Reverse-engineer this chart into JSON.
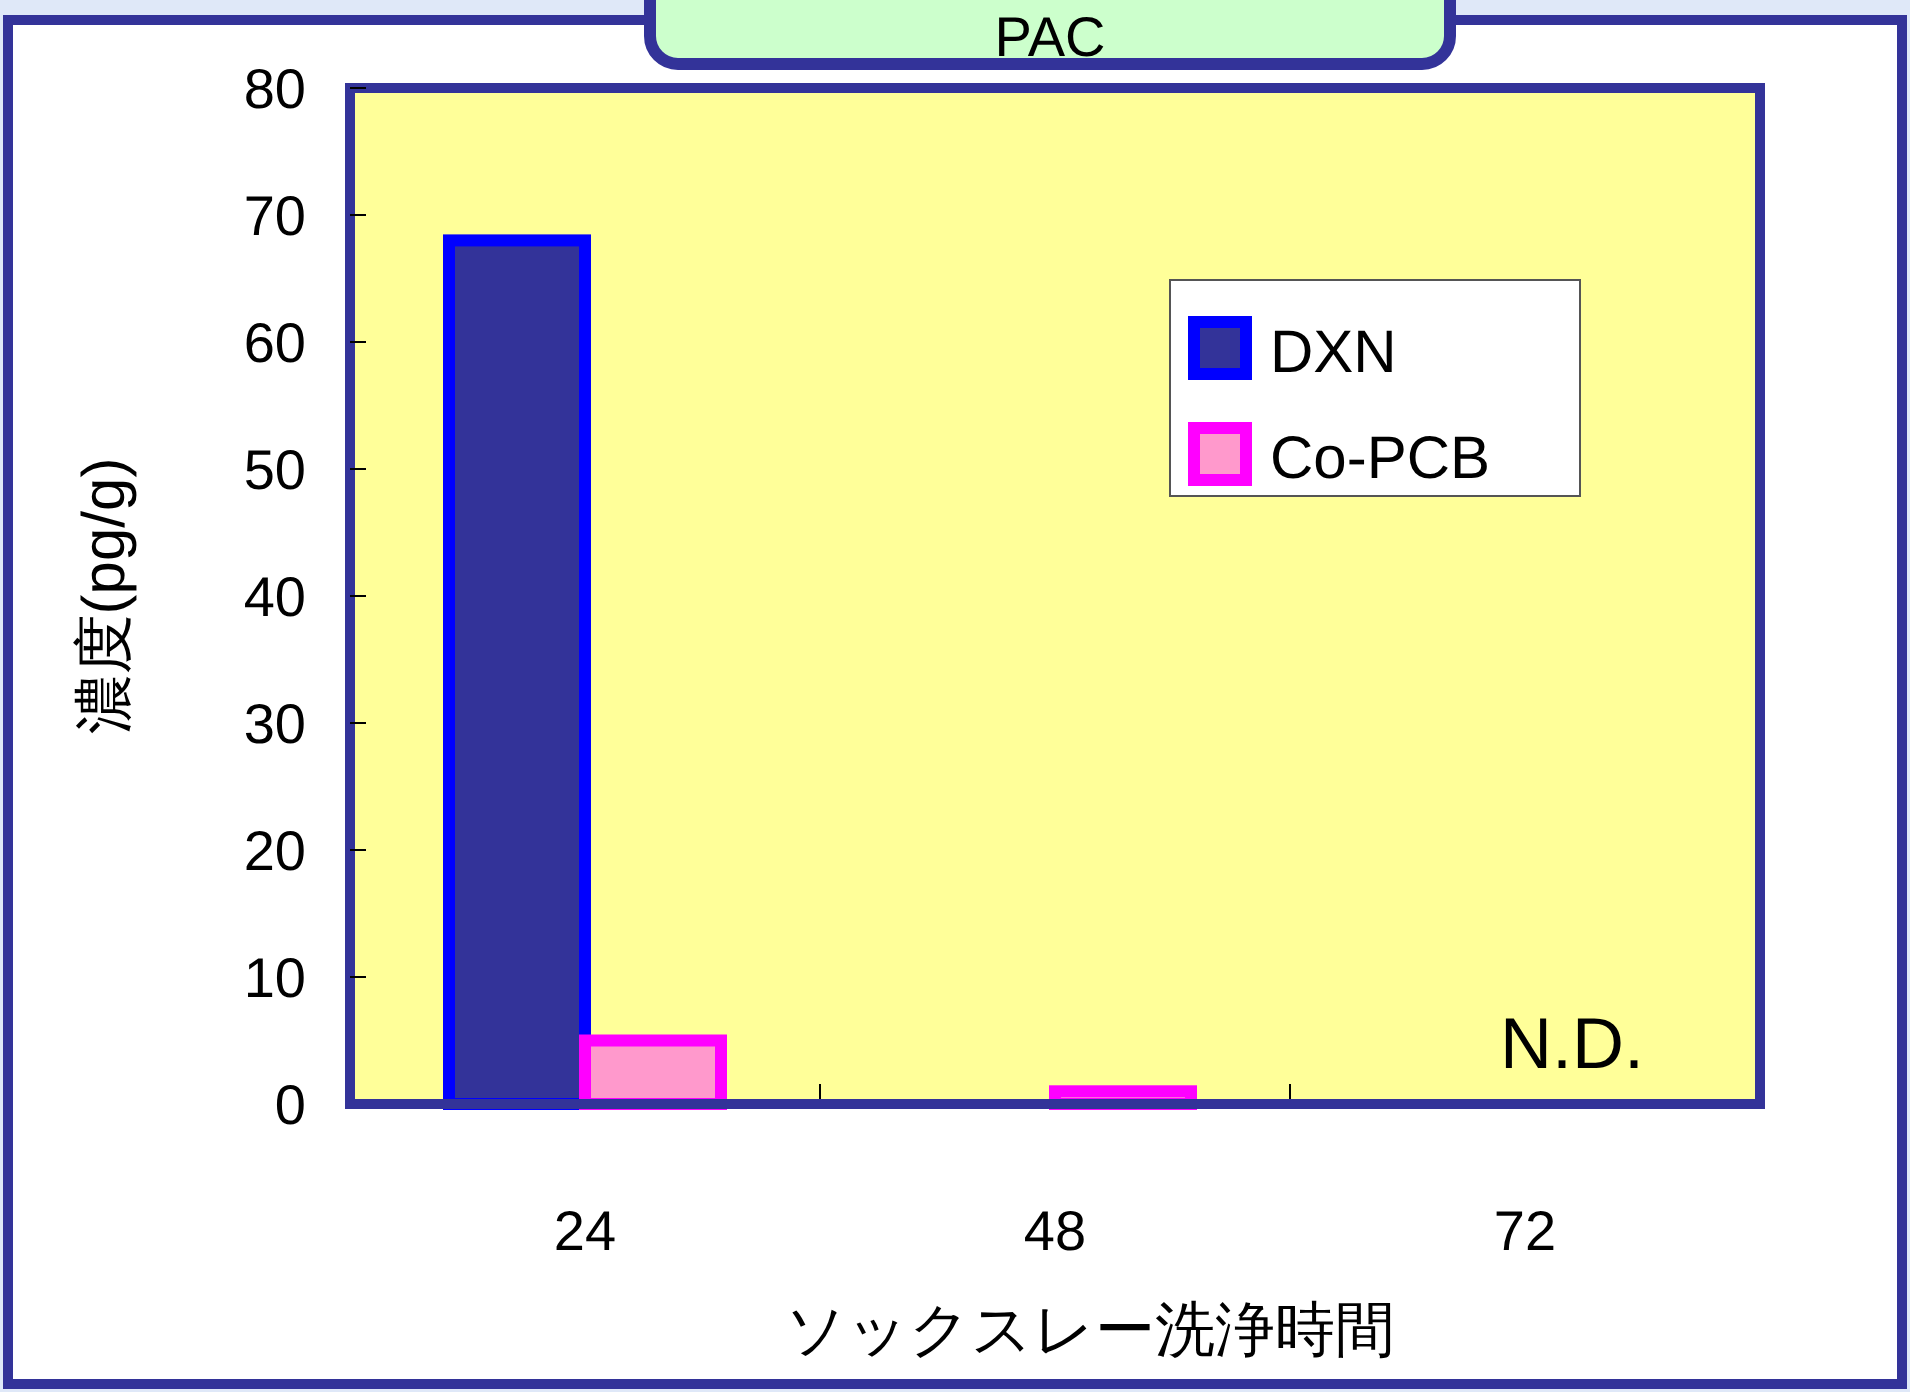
{
  "chart_data": {
    "type": "bar",
    "title": "PAC",
    "xlabel": "ソックスレー洗浄時間",
    "ylabel": "濃度(pg/g)",
    "categories": [
      "24",
      "48",
      "72"
    ],
    "series": [
      {
        "name": "DXN",
        "color": "#333399",
        "values": [
          68,
          null,
          null
        ]
      },
      {
        "name": "Co-PCB",
        "color": "#ff99cc",
        "values": [
          5,
          1,
          null
        ]
      }
    ],
    "ylim": [
      0,
      80
    ],
    "yticks": [
      0,
      10,
      20,
      30,
      40,
      50,
      60,
      70,
      80
    ],
    "grid": false,
    "legend": "top right",
    "annotations": [
      "N.D."
    ]
  }
}
